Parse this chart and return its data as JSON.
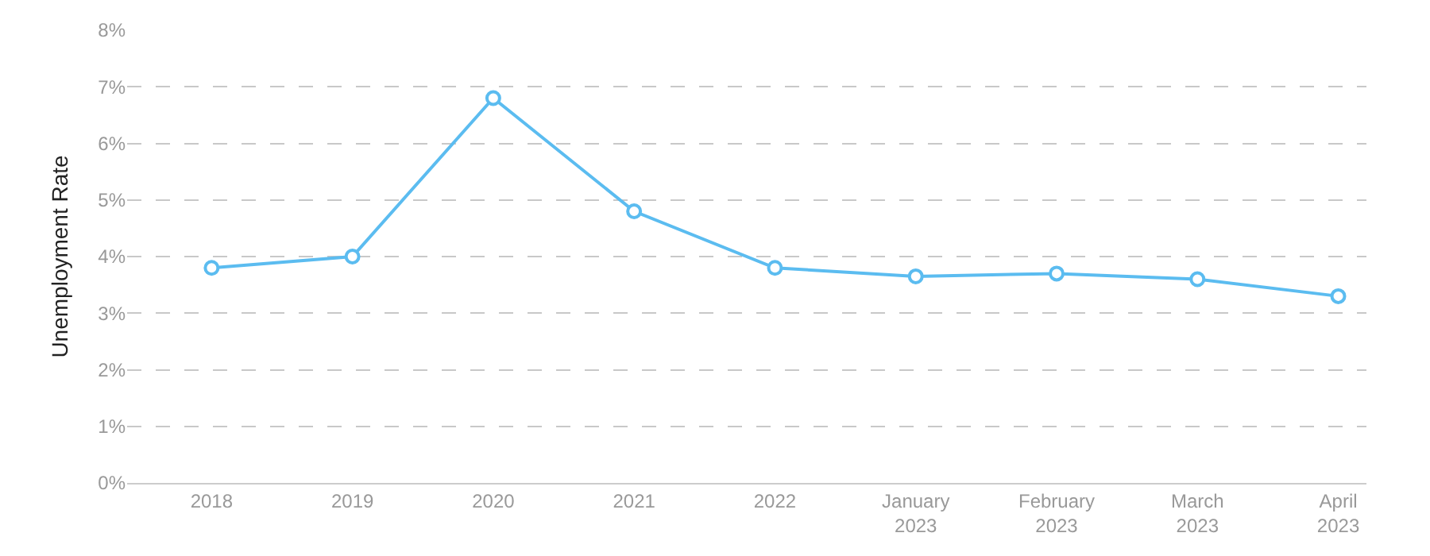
{
  "chart_data": {
    "type": "line",
    "ylabel": "Unemployment Rate",
    "categories": [
      "2018",
      "2019",
      "2020",
      "2021",
      "2022",
      "January\n2023",
      "February\n2023",
      "March\n2023",
      "April\n2023"
    ],
    "series": [
      {
        "color": "#5bbcf0",
        "values": [
          3.8,
          4.0,
          6.8,
          4.8,
          3.8,
          3.65,
          3.7,
          3.6,
          3.3
        ]
      }
    ],
    "ylim": [
      0,
      8
    ],
    "yticks": [
      {
        "value": 0,
        "label": "0%"
      },
      {
        "value": 1,
        "label": "1%"
      },
      {
        "value": 2,
        "label": "2%"
      },
      {
        "value": 3,
        "label": "3%"
      },
      {
        "value": 4,
        "label": "4%"
      },
      {
        "value": 5,
        "label": "5%"
      },
      {
        "value": 6,
        "label": "6%"
      },
      {
        "value": 7,
        "label": "7%"
      },
      {
        "value": 8,
        "label": "8%"
      }
    ],
    "grid": "y",
    "marker": "circle",
    "line_style": "solid"
  }
}
